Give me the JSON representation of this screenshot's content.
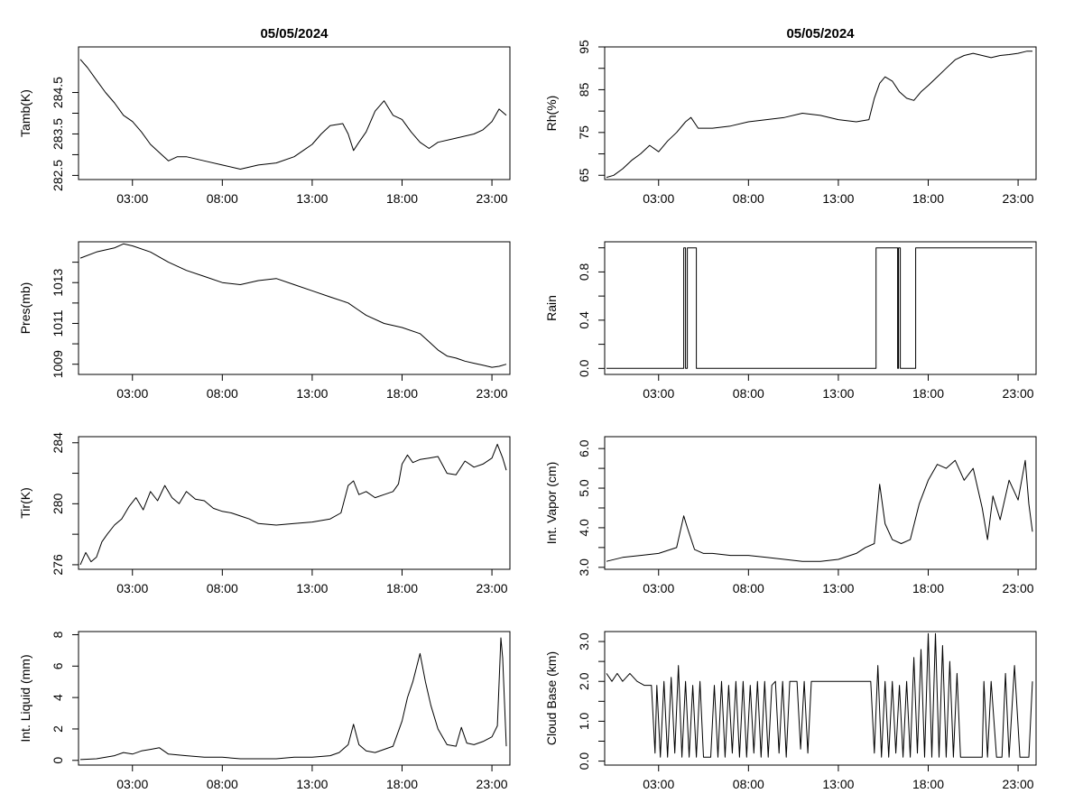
{
  "chart_data": [
    {
      "id": "tamb",
      "type": "line",
      "title": "05/05/2024",
      "xlabel": "",
      "ylabel": "Tamb(K)",
      "xlim": [
        0,
        24
      ],
      "ylim": [
        282.4,
        285.6
      ],
      "xticks": [
        3,
        8,
        13,
        18,
        23
      ],
      "xtick_labels": [
        "03:00",
        "08:00",
        "13:00",
        "18:00",
        "23:00"
      ],
      "yticks": [
        282.5,
        283.5,
        284.5
      ],
      "ytick_labels": [
        "282.5",
        "283.5",
        "284.5"
      ],
      "ytick_minor": [
        283.0,
        284.0
      ],
      "grid": false,
      "series": [
        {
          "x": [
            0.1,
            0.5,
            1.0,
            1.5,
            2.0,
            2.5,
            3.0,
            3.5,
            4.0,
            4.5,
            5.0,
            5.5,
            6.0,
            7.0,
            8.0,
            9.0,
            10.0,
            11.0,
            12.0,
            12.5,
            13.0,
            13.5,
            14.0,
            14.7,
            15.0,
            15.3,
            15.6,
            16.0,
            16.5,
            17.0,
            17.5,
            18.0,
            18.5,
            19.0,
            19.5,
            20.0,
            21.0,
            22.0,
            22.5,
            23.0,
            23.4,
            23.8
          ],
          "y": [
            285.3,
            285.1,
            284.8,
            284.5,
            284.25,
            283.95,
            283.8,
            283.55,
            283.25,
            283.05,
            282.85,
            282.95,
            282.95,
            282.85,
            282.75,
            282.65,
            282.75,
            282.8,
            282.95,
            283.1,
            283.25,
            283.5,
            283.7,
            283.75,
            283.5,
            283.1,
            283.3,
            283.55,
            284.05,
            284.3,
            283.95,
            283.85,
            283.55,
            283.3,
            283.15,
            283.3,
            283.4,
            283.5,
            283.6,
            283.8,
            284.1,
            283.95
          ]
        }
      ]
    },
    {
      "id": "rh",
      "type": "line",
      "title": "05/05/2024",
      "xlabel": "",
      "ylabel": "Rh(%)",
      "xlim": [
        0,
        24
      ],
      "ylim": [
        64,
        95
      ],
      "xticks": [
        3,
        8,
        13,
        18,
        23
      ],
      "xtick_labels": [
        "03:00",
        "08:00",
        "13:00",
        "18:00",
        "23:00"
      ],
      "yticks": [
        65,
        75,
        85,
        95
      ],
      "ytick_labels": [
        "65",
        "75",
        "85",
        "95"
      ],
      "ytick_minor": [
        70,
        80,
        90
      ],
      "grid": false,
      "series": [
        {
          "x": [
            0.1,
            0.5,
            1.0,
            1.5,
            2.0,
            2.5,
            3.0,
            3.5,
            4.0,
            4.5,
            4.8,
            5.2,
            6.0,
            7.0,
            8.0,
            9.0,
            10.0,
            11.0,
            12.0,
            13.0,
            14.0,
            14.7,
            15.0,
            15.3,
            15.6,
            16.0,
            16.4,
            16.8,
            17.2,
            17.6,
            18.0,
            18.5,
            19.0,
            19.5,
            20.0,
            20.5,
            21.0,
            21.5,
            22.0,
            22.5,
            23.0,
            23.5,
            23.8
          ],
          "y": [
            64.5,
            65.0,
            66.5,
            68.5,
            70.0,
            72.0,
            70.5,
            73.0,
            75.0,
            77.5,
            78.5,
            76.0,
            76.0,
            76.5,
            77.5,
            78.0,
            78.5,
            79.5,
            79.0,
            78.0,
            77.5,
            78.0,
            83.0,
            86.5,
            88.0,
            87.0,
            84.5,
            83.0,
            82.5,
            84.5,
            86.0,
            88.0,
            90.0,
            92.0,
            93.0,
            93.5,
            93.0,
            92.5,
            93.0,
            93.2,
            93.5,
            94.0,
            94.0
          ]
        }
      ]
    },
    {
      "id": "pres",
      "type": "line",
      "title": "",
      "xlabel": "",
      "ylabel": "Pres(mb)",
      "xlim": [
        0,
        24
      ],
      "ylim": [
        1008.5,
        1015.0
      ],
      "xticks": [
        3,
        8,
        13,
        18,
        23
      ],
      "xtick_labels": [
        "03:00",
        "08:00",
        "13:00",
        "18:00",
        "23:00"
      ],
      "yticks": [
        1009,
        1011,
        1013
      ],
      "ytick_labels": [
        "1009",
        "1011",
        "1013"
      ],
      "ytick_minor": [
        1010,
        1012,
        1014
      ],
      "grid": false,
      "series": [
        {
          "x": [
            0.1,
            1.0,
            2.0,
            2.5,
            3.0,
            4.0,
            5.0,
            6.0,
            7.0,
            8.0,
            9.0,
            10.0,
            11.0,
            12.0,
            13.0,
            14.0,
            15.0,
            15.5,
            16.0,
            17.0,
            18.0,
            19.0,
            19.5,
            20.0,
            20.5,
            21.0,
            21.5,
            22.0,
            22.5,
            23.0,
            23.4,
            23.8
          ],
          "y": [
            1014.2,
            1014.5,
            1014.7,
            1014.9,
            1014.8,
            1014.5,
            1014.0,
            1013.6,
            1013.3,
            1013.0,
            1012.9,
            1013.1,
            1013.2,
            1012.9,
            1012.6,
            1012.3,
            1012.0,
            1011.7,
            1011.4,
            1011.0,
            1010.8,
            1010.5,
            1010.1,
            1009.7,
            1009.4,
            1009.3,
            1009.15,
            1009.05,
            1008.95,
            1008.85,
            1008.9,
            1009.0
          ]
        }
      ]
    },
    {
      "id": "rain",
      "type": "line",
      "title": "",
      "xlabel": "",
      "ylabel": "Rain",
      "xlim": [
        0,
        24
      ],
      "ylim": [
        -0.05,
        1.05
      ],
      "xticks": [
        3,
        8,
        13,
        18,
        23
      ],
      "xtick_labels": [
        "03:00",
        "08:00",
        "13:00",
        "18:00",
        "23:00"
      ],
      "yticks": [
        0.0,
        0.4,
        0.8
      ],
      "ytick_labels": [
        "0.0",
        "0.4",
        "0.8"
      ],
      "ytick_minor": [
        0.2,
        0.6,
        1.0
      ],
      "grid": false,
      "series": [
        {
          "x": [
            0.1,
            4.4,
            4.4,
            4.5,
            4.5,
            4.6,
            4.6,
            5.1,
            5.1,
            15.1,
            15.1,
            16.3,
            16.3,
            16.35,
            16.35,
            16.45,
            16.45,
            16.5,
            16.5,
            17.3,
            17.3,
            23.8
          ],
          "y": [
            0,
            0,
            1,
            1,
            0,
            0,
            1,
            1,
            0,
            0,
            1,
            1,
            0,
            0,
            1,
            1,
            0,
            0,
            0,
            0,
            1,
            1
          ]
        }
      ]
    },
    {
      "id": "tir",
      "type": "line",
      "title": "",
      "xlabel": "",
      "ylabel": "Tir(K)",
      "xlim": [
        0,
        24
      ],
      "ylim": [
        275.7,
        284.4
      ],
      "xticks": [
        3,
        8,
        13,
        18,
        23
      ],
      "xtick_labels": [
        "03:00",
        "08:00",
        "13:00",
        "18:00",
        "23:00"
      ],
      "yticks": [
        276,
        280,
        284
      ],
      "ytick_labels": [
        "276",
        "280",
        "284"
      ],
      "ytick_minor": [
        278,
        282
      ],
      "grid": false,
      "series": [
        {
          "x": [
            0.1,
            0.4,
            0.7,
            1.0,
            1.3,
            1.6,
            2.0,
            2.4,
            2.8,
            3.2,
            3.6,
            4.0,
            4.4,
            4.8,
            5.2,
            5.6,
            6.0,
            6.5,
            7.0,
            7.5,
            8.0,
            8.5,
            9.0,
            9.5,
            10.0,
            11.0,
            12.0,
            13.0,
            14.0,
            14.6,
            15.0,
            15.3,
            15.6,
            16.0,
            16.5,
            17.0,
            17.5,
            17.8,
            18.0,
            18.3,
            18.6,
            19.0,
            19.5,
            20.0,
            20.5,
            21.0,
            21.5,
            22.0,
            22.5,
            23.0,
            23.3,
            23.6,
            23.8
          ],
          "y": [
            276.0,
            276.8,
            276.2,
            276.5,
            277.5,
            278.0,
            278.6,
            279.0,
            279.8,
            280.4,
            279.6,
            280.8,
            280.2,
            281.2,
            280.4,
            280.0,
            280.8,
            280.3,
            280.2,
            279.7,
            279.5,
            279.4,
            279.2,
            279.0,
            278.7,
            278.6,
            278.7,
            278.8,
            279.0,
            279.4,
            281.2,
            281.5,
            280.6,
            280.8,
            280.4,
            280.6,
            280.8,
            281.3,
            282.6,
            283.2,
            282.7,
            282.9,
            283.0,
            283.1,
            282.0,
            281.9,
            282.8,
            282.4,
            282.6,
            283.0,
            283.9,
            283.0,
            282.2
          ]
        }
      ]
    },
    {
      "id": "vapor",
      "type": "line",
      "title": "",
      "xlabel": "",
      "ylabel": "Int. Vapor (cm)",
      "xlim": [
        0,
        24
      ],
      "ylim": [
        2.95,
        6.3
      ],
      "xticks": [
        3,
        8,
        13,
        18,
        23
      ],
      "xtick_labels": [
        "03:00",
        "08:00",
        "13:00",
        "18:00",
        "23:00"
      ],
      "yticks": [
        3.0,
        4.0,
        5.0,
        6.0
      ],
      "ytick_labels": [
        "3.0",
        "4.0",
        "5.0",
        "6.0"
      ],
      "ytick_minor": [
        3.5,
        4.5,
        5.5
      ],
      "grid": false,
      "series": [
        {
          "x": [
            0.1,
            1.0,
            2.0,
            3.0,
            4.0,
            4.4,
            4.6,
            5.0,
            5.5,
            6.0,
            7.0,
            8.0,
            9.0,
            10.0,
            11.0,
            12.0,
            13.0,
            14.0,
            14.5,
            15.0,
            15.3,
            15.6,
            16.0,
            16.5,
            17.0,
            17.5,
            18.0,
            18.5,
            19.0,
            19.5,
            20.0,
            20.5,
            21.0,
            21.3,
            21.6,
            22.0,
            22.5,
            23.0,
            23.4,
            23.6,
            23.8
          ],
          "y": [
            3.15,
            3.25,
            3.3,
            3.35,
            3.5,
            4.3,
            4.0,
            3.45,
            3.35,
            3.35,
            3.3,
            3.3,
            3.25,
            3.2,
            3.15,
            3.15,
            3.2,
            3.35,
            3.5,
            3.6,
            5.1,
            4.1,
            3.7,
            3.6,
            3.7,
            4.6,
            5.2,
            5.6,
            5.5,
            5.7,
            5.2,
            5.5,
            4.5,
            3.7,
            4.8,
            4.2,
            5.2,
            4.7,
            5.7,
            4.6,
            3.9
          ]
        }
      ]
    },
    {
      "id": "liquid",
      "type": "line",
      "title": "",
      "xlabel": "",
      "ylabel": "Int. Liquid (mm)",
      "xlim": [
        0,
        24
      ],
      "ylim": [
        -0.3,
        8.2
      ],
      "xticks": [
        3,
        8,
        13,
        18,
        23
      ],
      "xtick_labels": [
        "03:00",
        "08:00",
        "13:00",
        "18:00",
        "23:00"
      ],
      "yticks": [
        0,
        2,
        4,
        6,
        8
      ],
      "ytick_labels": [
        "0",
        "2",
        "4",
        "6",
        "8"
      ],
      "ytick_minor": [],
      "grid": false,
      "series": [
        {
          "x": [
            0.1,
            1.0,
            2.0,
            2.5,
            3.0,
            3.5,
            4.0,
            4.5,
            5.0,
            6.0,
            7.0,
            8.0,
            9.0,
            10.0,
            11.0,
            12.0,
            13.0,
            14.0,
            14.5,
            15.0,
            15.3,
            15.6,
            16.0,
            16.5,
            17.0,
            17.5,
            18.0,
            18.3,
            18.6,
            19.0,
            19.3,
            19.6,
            20.0,
            20.5,
            21.0,
            21.3,
            21.6,
            22.0,
            22.5,
            23.0,
            23.3,
            23.5,
            23.6,
            23.8
          ],
          "y": [
            0.05,
            0.1,
            0.3,
            0.5,
            0.4,
            0.6,
            0.7,
            0.8,
            0.4,
            0.3,
            0.2,
            0.2,
            0.1,
            0.1,
            0.1,
            0.2,
            0.2,
            0.3,
            0.5,
            1.0,
            2.3,
            1.0,
            0.6,
            0.5,
            0.7,
            0.9,
            2.5,
            4.0,
            5.0,
            6.8,
            5.0,
            3.5,
            2.0,
            1.0,
            0.9,
            2.1,
            1.1,
            1.0,
            1.2,
            1.5,
            2.2,
            7.8,
            6.5,
            0.9
          ]
        }
      ]
    },
    {
      "id": "cloudbase",
      "type": "line",
      "title": "",
      "xlabel": "",
      "ylabel": "Cloud Base (km)",
      "xlim": [
        0,
        24
      ],
      "ylim": [
        -0.1,
        3.25
      ],
      "xticks": [
        3,
        8,
        13,
        18,
        23
      ],
      "xtick_labels": [
        "03:00",
        "08:00",
        "13:00",
        "18:00",
        "23:00"
      ],
      "yticks": [
        0.0,
        1.0,
        2.0,
        3.0
      ],
      "ytick_labels": [
        "0.0",
        "1.0",
        "2.0",
        "3.0"
      ],
      "ytick_minor": [
        0.5,
        1.5,
        2.5
      ],
      "grid": false,
      "series": [
        {
          "x": [
            0.1,
            0.4,
            0.7,
            1.0,
            1.4,
            1.8,
            2.2,
            2.6,
            2.8,
            2.9,
            3.1,
            3.3,
            3.5,
            3.7,
            3.9,
            4.1,
            4.3,
            4.5,
            4.7,
            4.9,
            5.1,
            5.3,
            5.5,
            5.7,
            5.9,
            6.1,
            6.3,
            6.5,
            6.7,
            6.9,
            7.1,
            7.3,
            7.5,
            7.7,
            7.9,
            8.1,
            8.3,
            8.5,
            8.7,
            8.9,
            9.1,
            9.3,
            9.5,
            9.7,
            9.9,
            10.1,
            10.3,
            10.5,
            10.7,
            10.9,
            11.1,
            11.3,
            11.5,
            11.7,
            12.0,
            12.5,
            13.0,
            13.5,
            14.0,
            14.5,
            14.8,
            15.0,
            15.2,
            15.4,
            15.6,
            15.8,
            16.0,
            16.2,
            16.4,
            16.6,
            16.8,
            17.0,
            17.2,
            17.4,
            17.6,
            17.8,
            18.0,
            18.2,
            18.4,
            18.6,
            18.8,
            19.0,
            19.2,
            19.4,
            19.6,
            19.8,
            20.0,
            20.5,
            21.0,
            21.1,
            21.3,
            21.5,
            21.8,
            22.1,
            22.3,
            22.5,
            22.8,
            23.1,
            23.4,
            23.6,
            23.8
          ],
          "y": [
            2.2,
            2.0,
            2.2,
            2.0,
            2.2,
            2.0,
            1.9,
            1.9,
            0.2,
            1.9,
            0.1,
            2.0,
            0.1,
            2.1,
            0.2,
            2.4,
            0.1,
            2.0,
            0.1,
            1.9,
            0.1,
            2.0,
            0.1,
            0.1,
            0.1,
            1.9,
            0.1,
            2.0,
            0.1,
            1.9,
            0.2,
            2.0,
            0.1,
            2.0,
            0.1,
            1.9,
            0.2,
            2.0,
            0.1,
            2.0,
            0.1,
            1.9,
            2.0,
            0.2,
            2.0,
            0.1,
            2.0,
            2.0,
            2.0,
            0.3,
            2.0,
            0.2,
            2.0,
            2.0,
            2.0,
            2.0,
            2.0,
            2.0,
            2.0,
            2.0,
            2.0,
            0.2,
            2.4,
            0.1,
            2.0,
            0.1,
            2.0,
            0.2,
            1.9,
            0.1,
            2.0,
            0.1,
            2.6,
            0.2,
            2.8,
            0.1,
            3.2,
            0.1,
            3.2,
            0.1,
            2.9,
            0.1,
            2.5,
            0.1,
            2.2,
            0.1,
            0.1,
            0.1,
            0.1,
            2.0,
            0.1,
            2.0,
            0.1,
            0.1,
            2.2,
            0.1,
            2.4,
            0.1,
            0.1,
            0.1,
            2.0
          ]
        }
      ]
    }
  ]
}
